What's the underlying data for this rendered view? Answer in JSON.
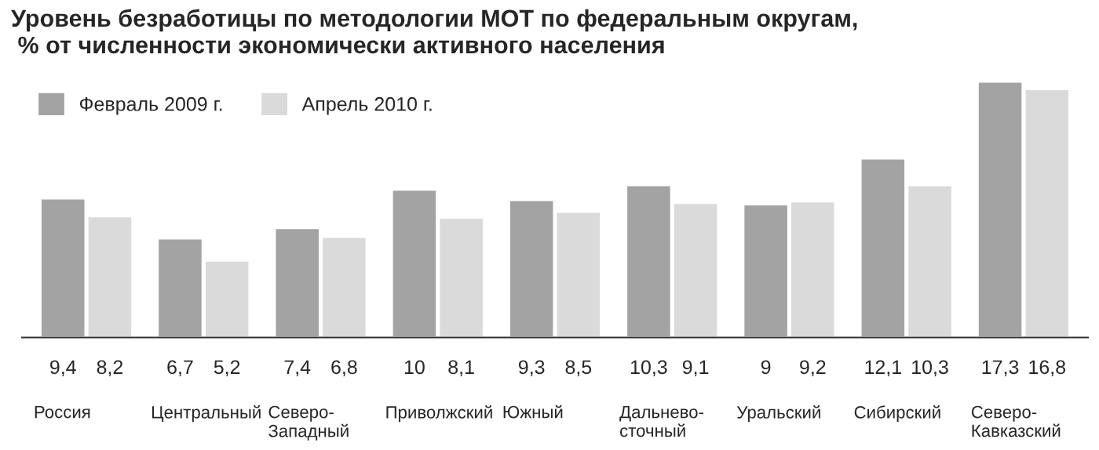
{
  "chart_data": {
    "type": "bar",
    "title": "Уровень безработицы по методологии МОТ по федеральным округам,\n % от численности экономически активного населения",
    "categories": [
      "Россия",
      "Центральный",
      "Северо-\nЗападный",
      "Приволжский",
      "Южный",
      "Дальнево-\nсточный",
      "Уральский",
      "Сибирский",
      "Северо-\nКавказский"
    ],
    "series": [
      {
        "name": "Февраль 2009 г.",
        "color": "#a3a3a3",
        "values": [
          9.4,
          6.7,
          7.4,
          10,
          9.3,
          10.3,
          9,
          12.1,
          17.3
        ],
        "value_labels": [
          "9,4",
          "6,7",
          "7,4",
          "10",
          "9,3",
          "10,3",
          "9",
          "12,1",
          "17,3"
        ]
      },
      {
        "name": "Апрель 2010 г.",
        "color": "#dadada",
        "values": [
          8.2,
          5.2,
          6.8,
          8.1,
          8.5,
          9.1,
          9.2,
          10.3,
          16.8
        ],
        "value_labels": [
          "8,2",
          "5,2",
          "6,8",
          "8,1",
          "8,5",
          "9,1",
          "9,2",
          "10,3",
          "16,8"
        ]
      }
    ],
    "legend": "top left"
  }
}
